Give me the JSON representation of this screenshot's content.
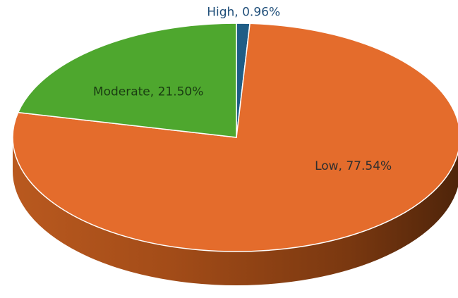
{
  "chart_data": {
    "type": "pie",
    "style": "3d",
    "title": "",
    "legend": "none",
    "start_slice_at_top": true,
    "slices": [
      {
        "label": "High",
        "value": 0.96,
        "color": "#1f5d86",
        "label_color": "#1f4e79",
        "display": "High, 0.96%"
      },
      {
        "label": "Low",
        "value": 77.54,
        "color": "#e46c2c",
        "label_color": "#2e2e2e",
        "display": "Low, 77.54%"
      },
      {
        "label": "Moderate",
        "value": 21.5,
        "color": "#4ea72e",
        "label_color": "#1a3d12",
        "display": "Moderate, 21.50%"
      }
    ]
  }
}
